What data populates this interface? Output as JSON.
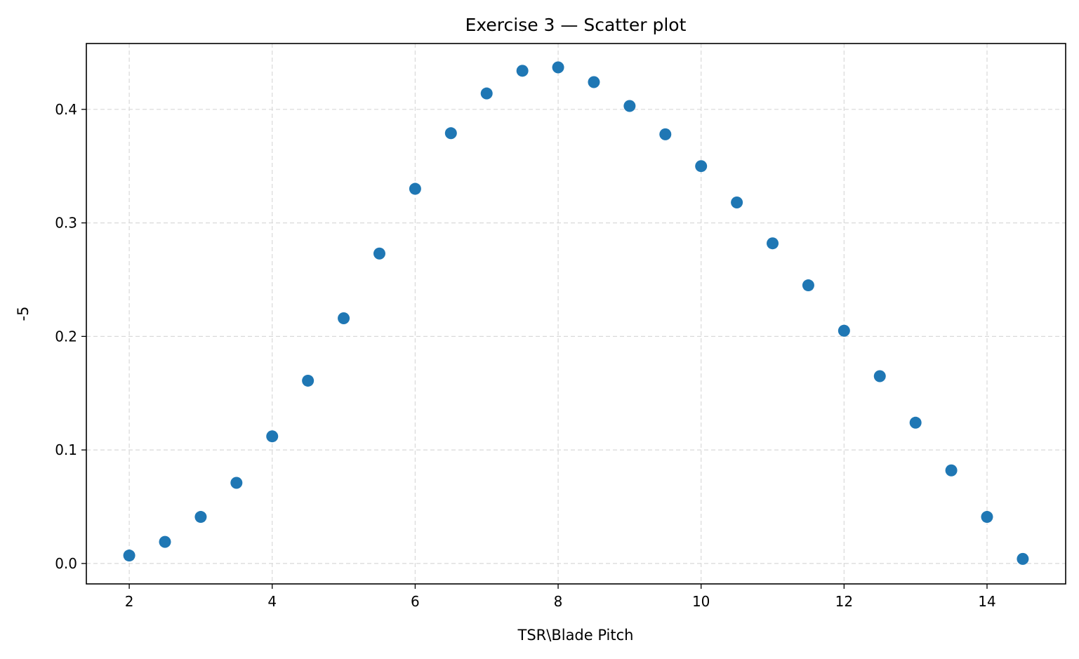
{
  "chart_data": {
    "type": "scatter",
    "title": "Exercise 3 — Scatter plot",
    "xlabel": "TSR\\Blade Pitch",
    "ylabel": "-5",
    "xlim": [
      1.4,
      15.1
    ],
    "ylim": [
      -0.018,
      0.458
    ],
    "xticks": [
      2,
      4,
      6,
      8,
      10,
      12,
      14
    ],
    "xtick_labels": [
      "2",
      "4",
      "6",
      "8",
      "10",
      "12",
      "14"
    ],
    "yticks": [
      0.0,
      0.1,
      0.2,
      0.3,
      0.4
    ],
    "ytick_labels": [
      "0.0",
      "0.1",
      "0.2",
      "0.3",
      "0.4"
    ],
    "grid": true,
    "color": "#1f77b4",
    "x": [
      2.0,
      2.5,
      3.0,
      3.5,
      4.0,
      4.5,
      5.0,
      5.5,
      6.0,
      6.5,
      7.0,
      7.5,
      8.0,
      8.5,
      9.0,
      9.5,
      10.0,
      10.5,
      11.0,
      11.5,
      12.0,
      12.5,
      13.0,
      13.5,
      14.0,
      14.5
    ],
    "y": [
      0.007,
      0.019,
      0.041,
      0.071,
      0.112,
      0.161,
      0.216,
      0.273,
      0.33,
      0.379,
      0.414,
      0.434,
      0.437,
      0.424,
      0.403,
      0.378,
      0.35,
      0.318,
      0.282,
      0.245,
      0.205,
      0.165,
      0.124,
      0.082,
      0.041,
      0.004
    ]
  }
}
